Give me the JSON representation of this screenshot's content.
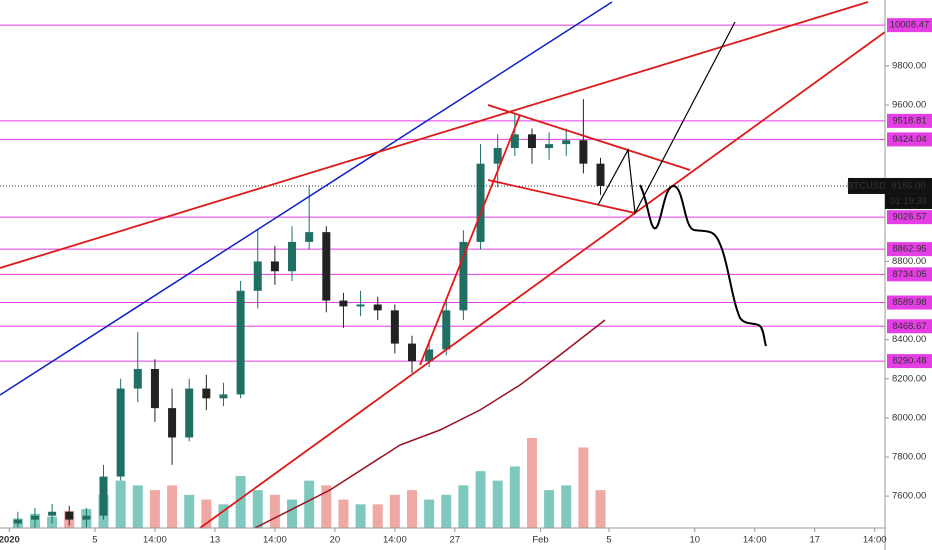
{
  "chart_data": {
    "type": "candlestick",
    "symbol": "BTCUSD",
    "last_price": {
      "value": 9186,
      "label": "9186.00"
    },
    "countdown": "01:19:38",
    "x": [
      0.5,
      1.5,
      2.5,
      3.5,
      4.5,
      5.5,
      6.5,
      7.5,
      8.5,
      9.5,
      10.5,
      11.5,
      12.5,
      13.5,
      14.5,
      15.5,
      16.5,
      17.5,
      18.5,
      19.5,
      20.5,
      21.5,
      22.5,
      23.5,
      24.5,
      25.5,
      26.5,
      27.5,
      28.5,
      29.5,
      30.5,
      31.5,
      32.5,
      33.5,
      34.5
    ],
    "open": [
      7460,
      7480,
      7500,
      7520,
      7480,
      7500,
      7700,
      8150,
      8250,
      8050,
      7900,
      8150,
      8100,
      8120,
      8650,
      8800,
      8750,
      8900,
      8950,
      8600,
      8570,
      8580,
      8550,
      8380,
      8290,
      8350,
      8550,
      8900,
      9300,
      9380,
      9450,
      9380,
      9400,
      9420,
      9300
    ],
    "high": [
      7520,
      7540,
      7560,
      7550,
      7540,
      7760,
      8200,
      8440,
      8300,
      8150,
      8200,
      8220,
      8180,
      8700,
      8960,
      8880,
      8980,
      9190,
      8980,
      8640,
      8650,
      8620,
      8580,
      8420,
      8400,
      8600,
      8960,
      9400,
      9450,
      9560,
      9480,
      9460,
      9480,
      9630,
      9330
    ],
    "low": [
      7440,
      7440,
      7460,
      7450,
      7440,
      7480,
      7680,
      8080,
      7980,
      7760,
      7880,
      8040,
      8060,
      8100,
      8560,
      8680,
      8700,
      8860,
      8540,
      8460,
      8520,
      8500,
      8330,
      8230,
      8260,
      8320,
      8500,
      8860,
      9180,
      9340,
      9300,
      9320,
      9340,
      9250,
      9140
    ],
    "close": [
      7480,
      7500,
      7520,
      7480,
      7500,
      7700,
      8150,
      8250,
      8050,
      7900,
      8150,
      8100,
      8120,
      8650,
      8800,
      8750,
      8900,
      8950,
      8600,
      8570,
      8580,
      8550,
      8380,
      8290,
      8350,
      8550,
      8900,
      9300,
      9380,
      9450,
      9380,
      9400,
      9420,
      9300,
      9186
    ],
    "volume": [
      10,
      15,
      12,
      18,
      20,
      35,
      50,
      45,
      40,
      45,
      35,
      30,
      25,
      55,
      40,
      35,
      30,
      50,
      45,
      30,
      25,
      25,
      35,
      40,
      30,
      35,
      45,
      60,
      50,
      65,
      95,
      40,
      45,
      85,
      40
    ],
    "up_color": "#1f6f65",
    "down_color": "#222222",
    "volume_up_color": "#7fc8bd",
    "volume_down_color": "#f0a8a5",
    "levels": [
      10008.47,
      9518.81,
      9424.04,
      9026.57,
      8862.95,
      8734.05,
      8589.98,
      8468.67,
      8290.48
    ],
    "level_color": "#e53ee5",
    "xlim": [
      -0.54,
      51.1
    ],
    "ylim": [
      7437,
      10137
    ],
    "xticks": [
      {
        "value": 0,
        "label": "2020"
      },
      5,
      {
        "value": 8.5,
        "label": "14:00"
      },
      {
        "value": 12,
        "label": "13"
      },
      {
        "value": 15.5,
        "label": "14:00"
      },
      {
        "value": 19,
        "label": "20"
      },
      {
        "value": 22.5,
        "label": "14:00"
      },
      {
        "value": 26,
        "label": "27"
      },
      {
        "value": 31,
        "label": "Feb"
      },
      {
        "value": 35,
        "label": "5"
      },
      {
        "value": 40,
        "label": "10"
      },
      {
        "value": 43.5,
        "label": "14:00"
      },
      {
        "value": 47,
        "label": "17"
      },
      {
        "value": 50.5,
        "label": "14:00"
      }
    ],
    "yticks": [
      {
        "value": 9800,
        "label": "9800.00"
      },
      {
        "value": 9600,
        "label": "9600.00"
      },
      {
        "value": 8800,
        "label": "8800.00"
      },
      {
        "value": 8400,
        "label": "8400.00"
      },
      {
        "value": 8200,
        "label": "8200.00"
      },
      {
        "value": 8000,
        "label": "8000.00"
      },
      {
        "value": 7800,
        "label": "7800.00"
      },
      {
        "value": 7600,
        "label": "7600.00"
      }
    ]
  }
}
